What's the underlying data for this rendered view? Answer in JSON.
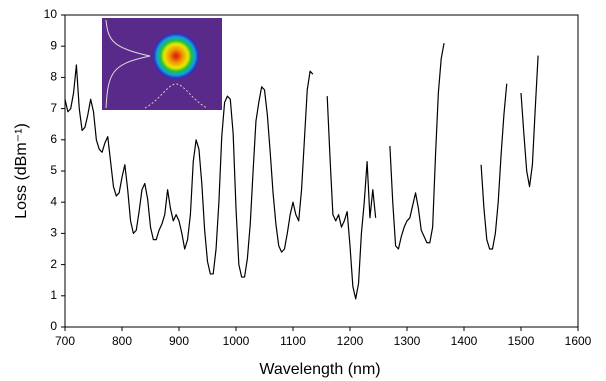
{
  "chart_data": {
    "type": "line",
    "xlabel": "Wavelength (nm)",
    "ylabel": "Loss (dBm⁻¹)",
    "x": [
      700,
      705,
      710,
      715,
      720,
      725,
      730,
      735,
      740,
      745,
      750,
      755,
      760,
      765,
      770,
      775,
      780,
      785,
      790,
      795,
      800,
      805,
      810,
      815,
      820,
      825,
      830,
      835,
      840,
      845,
      850,
      855,
      860,
      865,
      870,
      875,
      880,
      885,
      890,
      895,
      900,
      905,
      910,
      915,
      920,
      925,
      930,
      935,
      940,
      945,
      950,
      955,
      960,
      965,
      970,
      975,
      980,
      985,
      990,
      995,
      1000,
      1005,
      1010,
      1015,
      1020,
      1025,
      1030,
      1035,
      1040,
      1045,
      1050,
      1055,
      1060,
      1065,
      1070,
      1075,
      1080,
      1085,
      1090,
      1095,
      1100,
      1105,
      1110,
      1115,
      1120,
      1125,
      1130,
      1135,
      1145,
      1160,
      1165,
      1170,
      1175,
      1180,
      1185,
      1190,
      1195,
      1200,
      1205,
      1210,
      1215,
      1220,
      1225,
      1230,
      1235,
      1240,
      1245,
      1255,
      1270,
      1275,
      1280,
      1285,
      1290,
      1295,
      1300,
      1305,
      1310,
      1315,
      1320,
      1325,
      1330,
      1335,
      1340,
      1345,
      1350,
      1355,
      1360,
      1365,
      1400,
      1430,
      1435,
      1440,
      1445,
      1450,
      1455,
      1460,
      1465,
      1470,
      1475,
      1490,
      1500,
      1505,
      1510,
      1515,
      1520,
      1525,
      1530
    ],
    "values": [
      7.3,
      6.9,
      7.0,
      7.5,
      8.4,
      7.0,
      6.3,
      6.4,
      6.8,
      7.3,
      6.9,
      6.0,
      5.7,
      5.6,
      5.9,
      6.1,
      5.3,
      4.5,
      4.2,
      4.3,
      4.8,
      5.2,
      4.4,
      3.4,
      3.0,
      3.1,
      3.7,
      4.4,
      4.6,
      4.1,
      3.2,
      2.8,
      2.8,
      3.1,
      3.3,
      3.6,
      4.4,
      3.8,
      3.4,
      3.6,
      3.4,
      3.0,
      2.5,
      2.8,
      3.6,
      5.3,
      6.0,
      5.7,
      4.6,
      3.1,
      2.1,
      1.7,
      1.7,
      2.5,
      4.0,
      6.1,
      7.2,
      7.4,
      7.3,
      6.2,
      3.8,
      2.0,
      1.6,
      1.6,
      2.2,
      3.3,
      5.0,
      6.6,
      7.2,
      7.7,
      7.6,
      6.8,
      5.6,
      4.3,
      3.3,
      2.6,
      2.4,
      2.5,
      3.0,
      3.6,
      4.0,
      3.6,
      3.4,
      4.4,
      6.0,
      7.6,
      8.2,
      8.1,
      null,
      7.4,
      5.4,
      3.6,
      3.4,
      3.6,
      3.2,
      3.4,
      3.7,
      2.6,
      1.3,
      0.9,
      1.4,
      3.0,
      4.0,
      5.3,
      3.5,
      4.4,
      3.5,
      null,
      5.8,
      4.0,
      2.6,
      2.5,
      2.9,
      3.2,
      3.4,
      3.5,
      3.9,
      4.3,
      3.8,
      3.1,
      2.9,
      2.7,
      2.7,
      3.2,
      5.5,
      7.5,
      8.6,
      9.1,
      null,
      5.2,
      3.8,
      2.8,
      2.5,
      2.5,
      3.0,
      4.0,
      5.5,
      6.8,
      7.8,
      null,
      7.5,
      6.2,
      5.0,
      4.5,
      5.2,
      7.0,
      8.7
    ],
    "color": "#000000",
    "xlim": [
      700,
      1600
    ],
    "xticks": [
      700,
      800,
      900,
      1000,
      1100,
      1200,
      1300,
      1400,
      1500,
      1600
    ],
    "ylim": [
      0,
      10
    ],
    "yticks": [
      0,
      1,
      2,
      3,
      4,
      5,
      6,
      7,
      8,
      9,
      10
    ]
  }
}
